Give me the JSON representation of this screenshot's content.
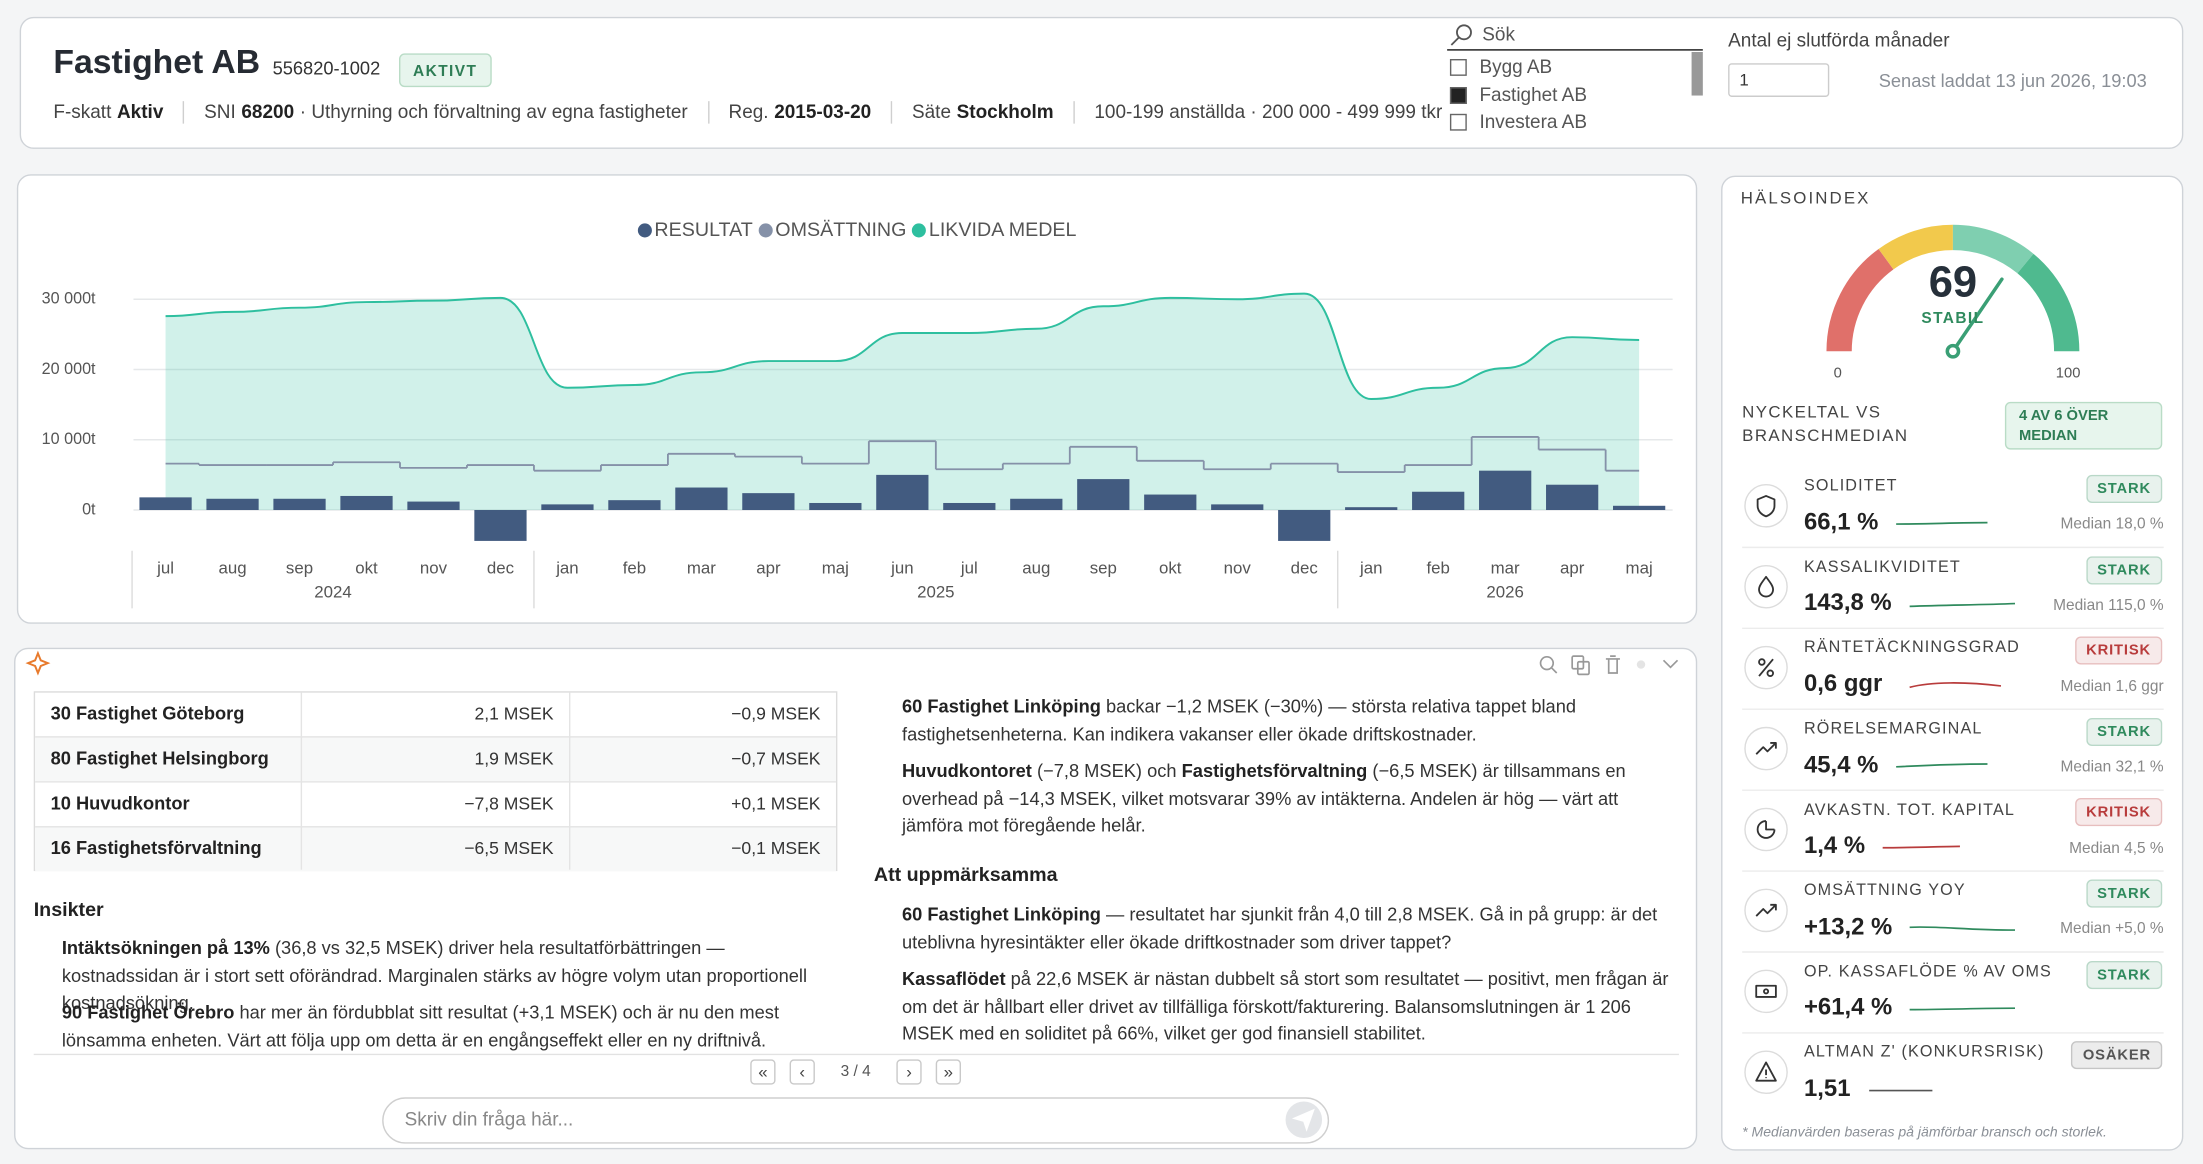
{
  "header": {
    "title": "Fastighet AB",
    "org_nr": "556820-1002",
    "status": "AKTIVT",
    "facts": [
      {
        "label": "F-skatt",
        "value": "Aktiv"
      },
      {
        "label": "SNI",
        "value": "68200",
        "text": "· Uthyrning och förvaltning av egna fastigheter"
      },
      {
        "label": "Reg.",
        "value": "2015-03-20"
      },
      {
        "label": "Säte",
        "value": "Stockholm"
      },
      {
        "text": "100-199 anställda · 200 000 - 499 999 tkr"
      }
    ]
  },
  "search": {
    "placeholder": "Sök",
    "options": [
      {
        "label": "Bygg AB",
        "checked": false
      },
      {
        "label": "Fastighet AB",
        "checked": true
      },
      {
        "label": "Investera AB",
        "checked": false
      }
    ]
  },
  "months_setting": {
    "label": "Antal ej slutförda månader",
    "value": "1"
  },
  "loaded": "Senast laddat 13 jun 2026, 19:03",
  "chart_data": {
    "type": "combo",
    "categories": [
      "jul",
      "aug",
      "sep",
      "okt",
      "nov",
      "dec",
      "jan",
      "feb",
      "mar",
      "apr",
      "maj",
      "jun",
      "jul",
      "aug",
      "sep",
      "okt",
      "nov",
      "dec",
      "jan",
      "feb",
      "mar",
      "apr",
      "maj"
    ],
    "years": [
      "2024",
      "2025",
      "2026"
    ],
    "ylim": [
      -6000,
      34000
    ],
    "yticks": [
      {
        "value": 0,
        "label": "0t"
      },
      {
        "value": 10000,
        "label": "10 000t"
      },
      {
        "value": 20000,
        "label": "20 000t"
      },
      {
        "value": 30000,
        "label": "30 000t"
      }
    ],
    "grid": true,
    "legend": "top",
    "series": [
      {
        "name": "RESULTAT",
        "type": "bar",
        "color": "#425b80",
        "values": [
          1800,
          1600,
          1600,
          2000,
          1200,
          -4400,
          800,
          1400,
          3200,
          2400,
          1000,
          5000,
          1000,
          1600,
          4400,
          2200,
          800,
          -4400,
          400,
          2600,
          5600,
          3600,
          600
        ]
      },
      {
        "name": "OMSÄTTNING",
        "type": "step",
        "color": "#8591a8",
        "values": [
          6600,
          6400,
          6400,
          6800,
          6000,
          6400,
          5600,
          6400,
          8000,
          7600,
          6600,
          9800,
          5800,
          6600,
          9000,
          7000,
          5800,
          6600,
          5400,
          6400,
          10400,
          8600,
          5600
        ]
      },
      {
        "name": "LIKVIDA MEDEL",
        "type": "area",
        "color": "#2ebf9f",
        "values": [
          27600,
          28200,
          28800,
          29600,
          29800,
          30200,
          17400,
          17800,
          19600,
          21200,
          21200,
          25200,
          25200,
          25800,
          29000,
          30200,
          30000,
          30800,
          15800,
          17400,
          20200,
          24600,
          24200
        ]
      }
    ]
  },
  "chat": {
    "table": [
      [
        "30 Fastighet Göteborg",
        "2,1 MSEK",
        "−0,9 MSEK"
      ],
      [
        "80 Fastighet Helsingborg",
        "1,9 MSEK",
        "−0,7 MSEK"
      ],
      [
        "10 Huvudkontor",
        "−7,8 MSEK",
        "+0,1 MSEK"
      ],
      [
        "16 Fastighetsförvaltning",
        "−6,5 MSEK",
        "−0,1 MSEK"
      ]
    ],
    "insights_title": "Insikter",
    "left": [
      [
        {
          "text": "Intäktsökningen på 13%",
          "bold": true
        },
        {
          "text": " (36,8 vs 32,5 MSEK) driver hela resultatförbättringen — kostnadssidan är i stort sett oförändrad. Marginalen stärks av högre volym utan proportionell kostnadsökning."
        }
      ],
      [
        {
          "text": "90 Fastighet Örebro",
          "bold": true
        },
        {
          "text": " har mer än fördubblat sitt resultat (+3,1 MSEK) och är nu den mest lönsamma enheten. Värt att följa upp om detta är en engångseffekt eller en ny driftnivå."
        }
      ]
    ],
    "right": [
      [
        {
          "text": "60 Fastighet Linköping",
          "bold": true
        },
        {
          "text": " backar −1,2 MSEK (−30%) — största relativa tappet bland fastighetsenheterna. Kan indikera vakanser eller ökade driftskostnader."
        }
      ],
      [
        {
          "text": "Huvudkontoret",
          "bold": true
        },
        {
          "text": " (−7,8 MSEK) och "
        },
        {
          "text": "Fastighetsförvaltning",
          "bold": true
        },
        {
          "text": " (−6,5 MSEK) är tillsammans en overhead på −14,3 MSEK, vilket motsvarar 39% av intäkterna. Andelen är hög — värt att jämföra mot föregående helår."
        }
      ]
    ],
    "attention_title": "Att uppmärksamma",
    "attention": [
      [
        {
          "text": "60 Fastighet Linköping",
          "bold": true
        },
        {
          "text": " — resultatet har sjunkit från 4,0 till 2,8 MSEK. Gå in på grupp: är det uteblivna hyresintäkter eller ökade driftkostnader som driver tappet?"
        }
      ],
      [
        {
          "text": "Kassaflödet",
          "bold": true
        },
        {
          "text": " på 22,6 MSEK är nästan dubbelt så stort som resultatet — positivt, men frågan är om det är hållbart eller drivet av tillfälliga förskott/fakturering. Balansomslutningen är 1 206 MSEK med en soliditet på 66%, vilket ger god finansiell stabilitet."
        }
      ]
    ],
    "pager": [
      "«",
      "‹",
      "›",
      "»"
    ],
    "page": "3 / 4",
    "input_placeholder": "Skriv din fråga här..."
  },
  "health": {
    "title": "HÄLSOINDEX",
    "gauge": {
      "value": 69,
      "min": 0,
      "max": 100,
      "status": "STABIL"
    },
    "kpi_title": "NYCKELTAL VS BRANSCHMEDIAN",
    "kpi_badge": "4 AV 6 ÖVER MEDIAN",
    "kpis": [
      {
        "name": "SOLIDITET",
        "value": "66,1 %",
        "status": "STARK",
        "median": "Median 18,0 %",
        "color": "#2f8a5d"
      },
      {
        "name": "KASSALIKVIDITET",
        "value": "143,8 %",
        "status": "STARK",
        "median": "Median 115,0 %",
        "color": "#2f8a5d"
      },
      {
        "name": "RÄNTETÄCKNINGSGRAD",
        "value": "0,6 ggr",
        "status": "KRITISK",
        "median": "Median 1,6 ggr",
        "color": "#b83c3c"
      },
      {
        "name": "RÖRELSEMARGINAL",
        "value": "45,4 %",
        "status": "STARK",
        "median": "Median 32,1 %",
        "color": "#2f8a5d"
      },
      {
        "name": "AVKASTN. TOT. KAPITAL",
        "value": "1,4 %",
        "status": "KRITISK",
        "median": "Median 4,5 %",
        "color": "#b83c3c"
      },
      {
        "name": "OMSÄTTNING YOY",
        "value": "+13,2 %",
        "status": "STARK",
        "median": "Median +5,0 %",
        "color": "#2f8a5d"
      },
      {
        "name": "OP. KASSAFLÖDE % AV OMS",
        "value": "+61,4 %",
        "status": "STARK",
        "color": "#2f8a5d"
      },
      {
        "name": "ALTMAN Z' (KONKURSRISK)",
        "value": "1,51",
        "status": "OSÄKER",
        "color": "#555555"
      }
    ],
    "footnote": "* Medianvärden baseras på jämförbar bransch och storlek."
  }
}
